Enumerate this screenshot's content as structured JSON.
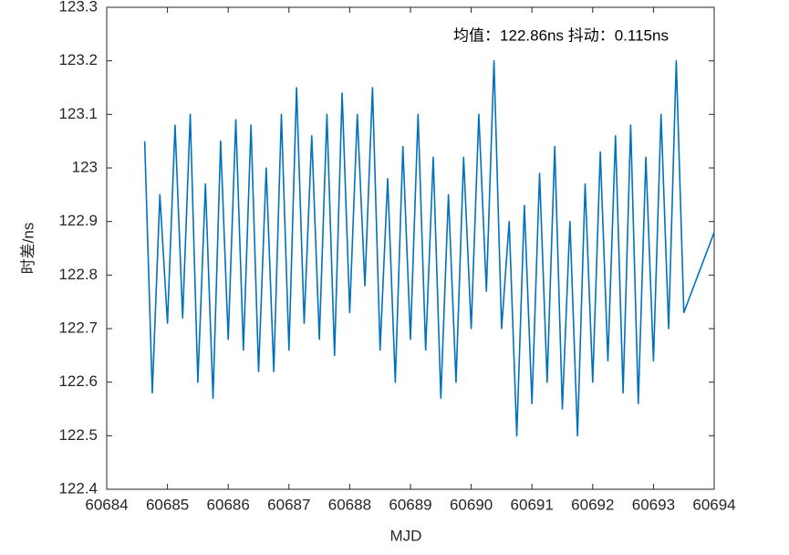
{
  "chart_data": {
    "type": "line",
    "xlabel": "MJD",
    "ylabel": "时差/ns",
    "annotation": "均值：122.86ns  抖动：0.115ns",
    "xlim": [
      60684,
      60694
    ],
    "xticks": [
      60684,
      60685,
      60686,
      60687,
      60688,
      60689,
      60690,
      60691,
      60692,
      60693,
      60694
    ],
    "ylim": [
      122.4,
      123.3
    ],
    "yticks": [
      122.4,
      122.5,
      122.6,
      122.7,
      122.8,
      122.9,
      123,
      123.1,
      123.2,
      123.3
    ],
    "grid": false,
    "series": [
      {
        "color": "#0072bd",
        "x": [
          60684.625,
          60684.75,
          60684.875,
          60685.0,
          60685.125,
          60685.25,
          60685.375,
          60685.5,
          60685.625,
          60685.75,
          60685.875,
          60686.0,
          60686.125,
          60686.25,
          60686.375,
          60686.5,
          60686.625,
          60686.75,
          60686.875,
          60687.0,
          60687.125,
          60687.25,
          60687.375,
          60687.5,
          60687.625,
          60687.75,
          60687.875,
          60688.0,
          60688.125,
          60688.25,
          60688.375,
          60688.5,
          60688.625,
          60688.75,
          60688.875,
          60689.0,
          60689.125,
          60689.25,
          60689.375,
          60689.5,
          60689.625,
          60689.75,
          60689.875,
          60690.0,
          60690.125,
          60690.25,
          60690.375,
          60690.5,
          60690.625,
          60690.75,
          60690.875,
          60691.0,
          60691.125,
          60691.25,
          60691.375,
          60691.5,
          60691.625,
          60691.75,
          60691.875,
          60692.0,
          60692.125,
          60692.25,
          60692.375,
          60692.5,
          60692.625,
          60692.75,
          60692.875,
          60693.0,
          60693.125,
          60693.25,
          60693.375,
          60693.5,
          60694
        ],
        "values": [
          123.05,
          122.58,
          122.95,
          122.71,
          123.08,
          122.72,
          123.1,
          122.6,
          122.97,
          122.57,
          123.05,
          122.68,
          123.09,
          122.66,
          123.08,
          122.62,
          123.0,
          122.62,
          123.1,
          122.66,
          123.15,
          122.71,
          123.06,
          122.68,
          123.1,
          122.65,
          123.14,
          122.73,
          123.1,
          122.78,
          123.15,
          122.66,
          122.98,
          122.6,
          123.04,
          122.68,
          123.1,
          122.66,
          123.02,
          122.57,
          122.95,
          122.6,
          123.02,
          122.7,
          123.1,
          122.77,
          123.2,
          122.7,
          122.9,
          122.5,
          122.93,
          122.56,
          122.99,
          122.6,
          123.04,
          122.55,
          122.9,
          122.5,
          122.97,
          122.6,
          123.03,
          122.64,
          123.06,
          122.58,
          123.08,
          122.56,
          123.02,
          122.64,
          123.1,
          122.7,
          123.2,
          122.73,
          122.88
        ]
      }
    ]
  }
}
